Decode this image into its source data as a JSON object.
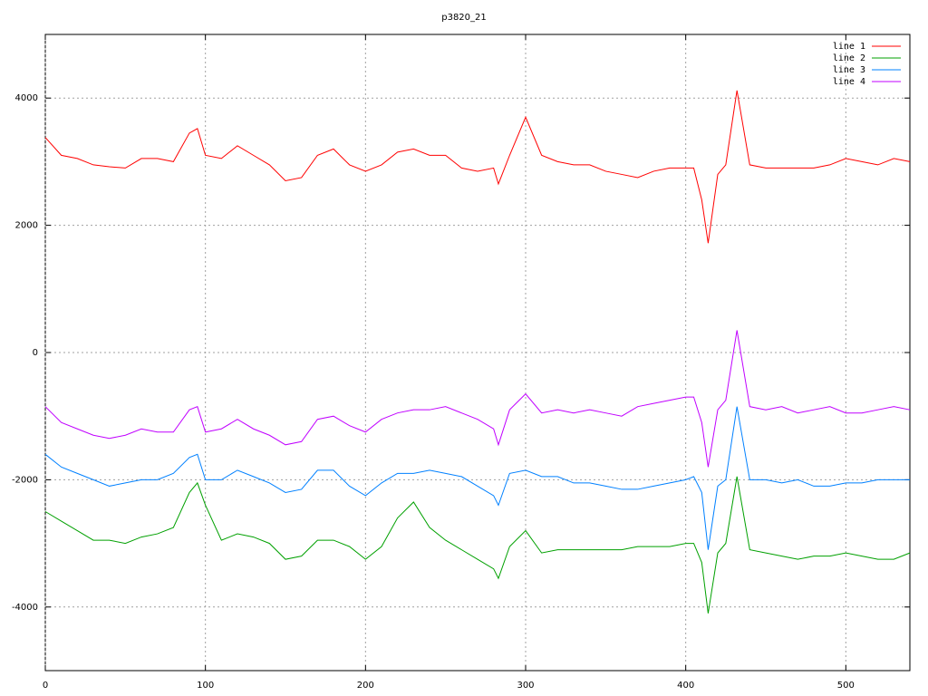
{
  "chart_data": {
    "type": "line",
    "title": "p3820_21",
    "x": [
      0,
      10,
      20,
      30,
      40,
      50,
      60,
      70,
      80,
      90,
      95,
      100,
      110,
      120,
      130,
      140,
      150,
      160,
      170,
      180,
      190,
      200,
      210,
      220,
      230,
      240,
      250,
      260,
      270,
      280,
      283,
      290,
      300,
      310,
      320,
      330,
      340,
      350,
      360,
      370,
      380,
      390,
      400,
      405,
      410,
      414,
      420,
      425,
      432,
      440,
      450,
      460,
      470,
      480,
      490,
      500,
      510,
      520,
      530,
      540
    ],
    "series": [
      {
        "name": "line 1",
        "color": "#ff0000",
        "values": [
          3380,
          3100,
          3050,
          2950,
          2920,
          2900,
          3050,
          3050,
          3000,
          3450,
          3520,
          3100,
          3050,
          3250,
          3100,
          2950,
          2700,
          2750,
          3100,
          3200,
          2950,
          2850,
          2950,
          3150,
          3200,
          3100,
          3100,
          2900,
          2850,
          2900,
          2650,
          3100,
          3700,
          3100,
          3000,
          2950,
          2950,
          2850,
          2800,
          2750,
          2850,
          2900,
          2900,
          2900,
          2400,
          1720,
          2800,
          2950,
          4120,
          2950,
          2900,
          2900,
          2900,
          2900,
          2950,
          3050,
          3000,
          2950,
          3050,
          3000
        ]
      },
      {
        "name": "line 2",
        "color": "#00a000",
        "values": [
          -2500,
          -2650,
          -2800,
          -2950,
          -2950,
          -3000,
          -2900,
          -2850,
          -2750,
          -2200,
          -2050,
          -2400,
          -2950,
          -2850,
          -2900,
          -3000,
          -3250,
          -3200,
          -2950,
          -2950,
          -3050,
          -3250,
          -3050,
          -2600,
          -2350,
          -2750,
          -2950,
          -3100,
          -3250,
          -3400,
          -3550,
          -3050,
          -2800,
          -3150,
          -3100,
          -3100,
          -3100,
          -3100,
          -3100,
          -3050,
          -3050,
          -3050,
          -3000,
          -3000,
          -3300,
          -4100,
          -3150,
          -3000,
          -1950,
          -3100,
          -3150,
          -3200,
          -3250,
          -3200,
          -3200,
          -3150,
          -3200,
          -3250,
          -3250,
          -3150
        ]
      },
      {
        "name": "line 3",
        "color": "#0080ff",
        "values": [
          -1600,
          -1800,
          -1900,
          -2000,
          -2100,
          -2050,
          -2000,
          -2000,
          -1900,
          -1650,
          -1600,
          -2000,
          -2000,
          -1850,
          -1950,
          -2050,
          -2200,
          -2150,
          -1850,
          -1850,
          -2100,
          -2250,
          -2050,
          -1900,
          -1900,
          -1850,
          -1900,
          -1950,
          -2100,
          -2250,
          -2400,
          -1900,
          -1850,
          -1950,
          -1950,
          -2050,
          -2050,
          -2100,
          -2150,
          -2150,
          -2100,
          -2050,
          -2000,
          -1950,
          -2200,
          -3100,
          -2100,
          -2000,
          -850,
          -2000,
          -2000,
          -2050,
          -2000,
          -2100,
          -2100,
          -2050,
          -2050,
          -2000,
          -2000,
          -2000
        ]
      },
      {
        "name": "line 4",
        "color": "#c000ff",
        "values": [
          -850,
          -1100,
          -1200,
          -1300,
          -1350,
          -1300,
          -1200,
          -1250,
          -1250,
          -900,
          -850,
          -1250,
          -1200,
          -1050,
          -1200,
          -1300,
          -1450,
          -1400,
          -1050,
          -1000,
          -1150,
          -1250,
          -1050,
          -950,
          -900,
          -900,
          -850,
          -950,
          -1050,
          -1200,
          -1450,
          -900,
          -650,
          -950,
          -900,
          -950,
          -900,
          -950,
          -1000,
          -850,
          -800,
          -750,
          -700,
          -700,
          -1100,
          -1800,
          -900,
          -750,
          350,
          -850,
          -900,
          -850,
          -950,
          -900,
          -850,
          -950,
          -950,
          -900,
          -850,
          -900
        ]
      }
    ],
    "xlim": [
      0,
      540
    ],
    "ylim": [
      -5000,
      5000
    ],
    "xticks": [
      0,
      100,
      200,
      300,
      400,
      500
    ],
    "yticks": [
      -4000,
      -2000,
      0,
      2000,
      4000
    ],
    "grid": true,
    "legend": "top-right"
  }
}
